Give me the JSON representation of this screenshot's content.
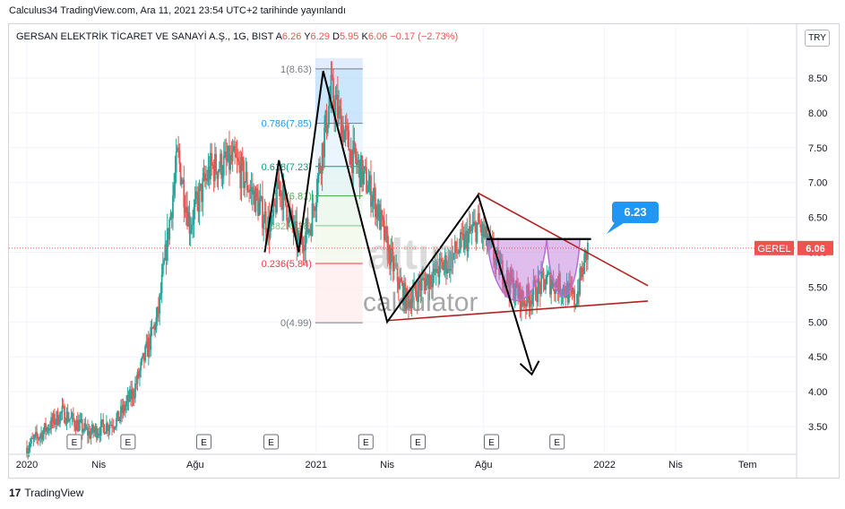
{
  "header": {
    "publish_note": "Calculus34 TradingView.com, Ara 11, 2021 23:54 UTC+2 tarihinde yayınlandı"
  },
  "legend": {
    "symbol": "GERSAN ELEKTRİK TİCARET VE SANAYİ A.Ş., 1G, BIST",
    "open_label": "A",
    "open": "6.26",
    "high_label": "Y",
    "high": "6.29",
    "low_label": "D",
    "low": "5.95",
    "close_label": "K",
    "close": "6.06",
    "change": "−0.17 (−2.73%)"
  },
  "currency": "TRY",
  "footer": {
    "brand": "TradingView"
  },
  "colors": {
    "up": "#26a69a",
    "down": "#ef5350",
    "wedge": "#b22222",
    "cup": "#b86dd6",
    "pattern": "#000000",
    "callout": "#2196f3",
    "price_tag": "#ef5350"
  },
  "chart_data": {
    "type": "candlestick",
    "symbol_tag": "GEREL",
    "last_price": 6.06,
    "callout_value": "6.23",
    "y_axis": {
      "ticks": [
        "3.50",
        "4.00",
        "4.50",
        "5.00",
        "5.50",
        "6.00",
        "6.50",
        "7.00",
        "7.50",
        "8.00",
        "8.50"
      ],
      "range": [
        3.2,
        8.8
      ]
    },
    "x_axis": {
      "labels": [
        "2020",
        "Nis",
        "Ağu",
        "2021",
        "Nis",
        "Ağu",
        "2022",
        "Nis",
        "Tem"
      ],
      "range": [
        "2020-01-01",
        "2022-08-31"
      ]
    },
    "earnings_marker": "E",
    "earnings_dates": [
      "2020-03-01",
      "2020-05-08",
      "2020-08-12",
      "2020-11-05",
      "2021-03-05",
      "2021-05-10",
      "2021-08-11",
      "2021-11-02"
    ],
    "fibonacci": {
      "range": [
        "2020-12-31",
        "2021-03-01"
      ],
      "levels": [
        {
          "label": "1(8.63)",
          "value": 8.63,
          "color": "#787b86"
        },
        {
          "label": "0.786(7.85)",
          "value": 7.85,
          "color": "#2196f3"
        },
        {
          "label": "0.618(7.23)",
          "value": 7.23,
          "color": "#089981"
        },
        {
          "label": "0.5(6.81)",
          "value": 6.81,
          "color": "#4caf50"
        },
        {
          "label": "0.382(6.38)",
          "value": 6.38,
          "color": "#81c784"
        },
        {
          "label": "0.236(5.84)",
          "value": 5.84,
          "color": "#f23645"
        },
        {
          "label": "0(4.99)",
          "value": 4.99,
          "color": "#787b86"
        }
      ]
    },
    "zigzag": [
      {
        "x": "2020-10-28",
        "y": 6.0
      },
      {
        "x": "2020-11-15",
        "y": 7.32
      },
      {
        "x": "2020-12-10",
        "y": 6.0
      },
      {
        "x": "2021-01-10",
        "y": 8.6
      },
      {
        "x": "2021-04-01",
        "y": 5.0
      },
      {
        "x": "2021-07-25",
        "y": 6.82
      },
      {
        "x": "2021-10-01",
        "y": 4.3
      }
    ],
    "wedge": {
      "upper": [
        {
          "x": "2021-07-25",
          "y": 6.85
        },
        {
          "x": "2022-02-25",
          "y": 5.52
        }
      ],
      "lower": [
        {
          "x": "2021-04-01",
          "y": 5.02
        },
        {
          "x": "2022-02-25",
          "y": 5.3
        }
      ]
    },
    "neckline": {
      "x1": "2021-08-05",
      "x2": "2021-12-15",
      "y": 6.19
    },
    "cups": [
      {
        "x1": "2021-08-05",
        "x2": "2021-10-20",
        "bottom": 5.14
      },
      {
        "x1": "2021-10-20",
        "x2": "2021-12-01",
        "bottom": 5.23
      }
    ],
    "watermark": [
      "altın",
      "calculator"
    ]
  }
}
